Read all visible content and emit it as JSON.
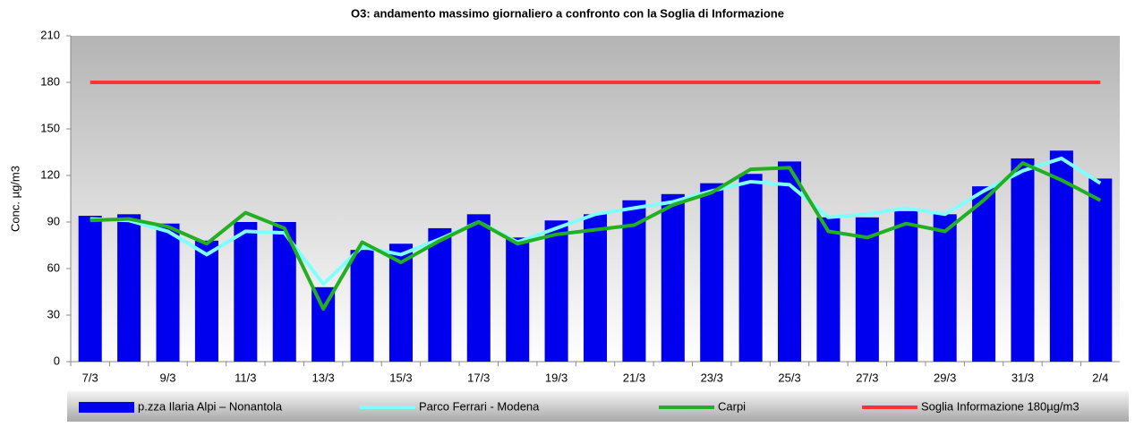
{
  "chart_data": {
    "type": "bar_line",
    "title": "O3: andamento massimo giornaliero a confronto con la Soglia di Informazione",
    "y_label": "Conc. µg/m3",
    "categories": [
      "7/3",
      null,
      "9/3",
      null,
      "11/3",
      null,
      "13/3",
      null,
      "15/3",
      null,
      "17/3",
      null,
      "19/3",
      null,
      "21/3",
      null,
      "23/3",
      null,
      "25/3",
      null,
      "27/3",
      null,
      "29/3",
      null,
      "31/3",
      null,
      "2/4"
    ],
    "series": [
      {
        "name": "p.zza Ilaria Alpi – Nonantola",
        "type": "bar",
        "color": "#0000ee",
        "values": [
          94,
          95,
          89,
          78,
          90,
          90,
          48,
          72,
          76,
          86,
          95,
          80,
          91,
          95,
          104,
          108,
          115,
          121,
          129,
          93,
          93,
          97,
          95,
          113,
          131,
          136,
          118
        ]
      },
      {
        "name": "Parco Ferrari - Modena",
        "type": "line",
        "color": "#80ffff",
        "values": [
          92,
          91,
          84,
          69,
          84,
          83,
          50,
          74,
          69,
          79,
          90,
          77,
          86,
          95,
          99,
          103,
          110,
          116,
          114,
          93,
          95,
          99,
          95,
          110,
          123,
          131,
          115
        ]
      },
      {
        "name": "Carpi",
        "type": "line",
        "color": "#22b022",
        "values": [
          91,
          92,
          87,
          76,
          96,
          86,
          34,
          77,
          64,
          78,
          90,
          76,
          82,
          85,
          88,
          101,
          109,
          124,
          125,
          84,
          80,
          89,
          84,
          104,
          128,
          117,
          104
        ]
      },
      {
        "name": "Soglia Informazione 180µg/m3",
        "type": "line",
        "color": "#ff3333",
        "values": [
          180,
          180,
          180,
          180,
          180,
          180,
          180,
          180,
          180,
          180,
          180,
          180,
          180,
          180,
          180,
          180,
          180,
          180,
          180,
          180,
          180,
          180,
          180,
          180,
          180,
          180,
          180
        ]
      }
    ],
    "ylim": [
      0,
      210
    ],
    "yticks": [
      0,
      30,
      60,
      90,
      120,
      150,
      180,
      210
    ],
    "grid": false
  }
}
